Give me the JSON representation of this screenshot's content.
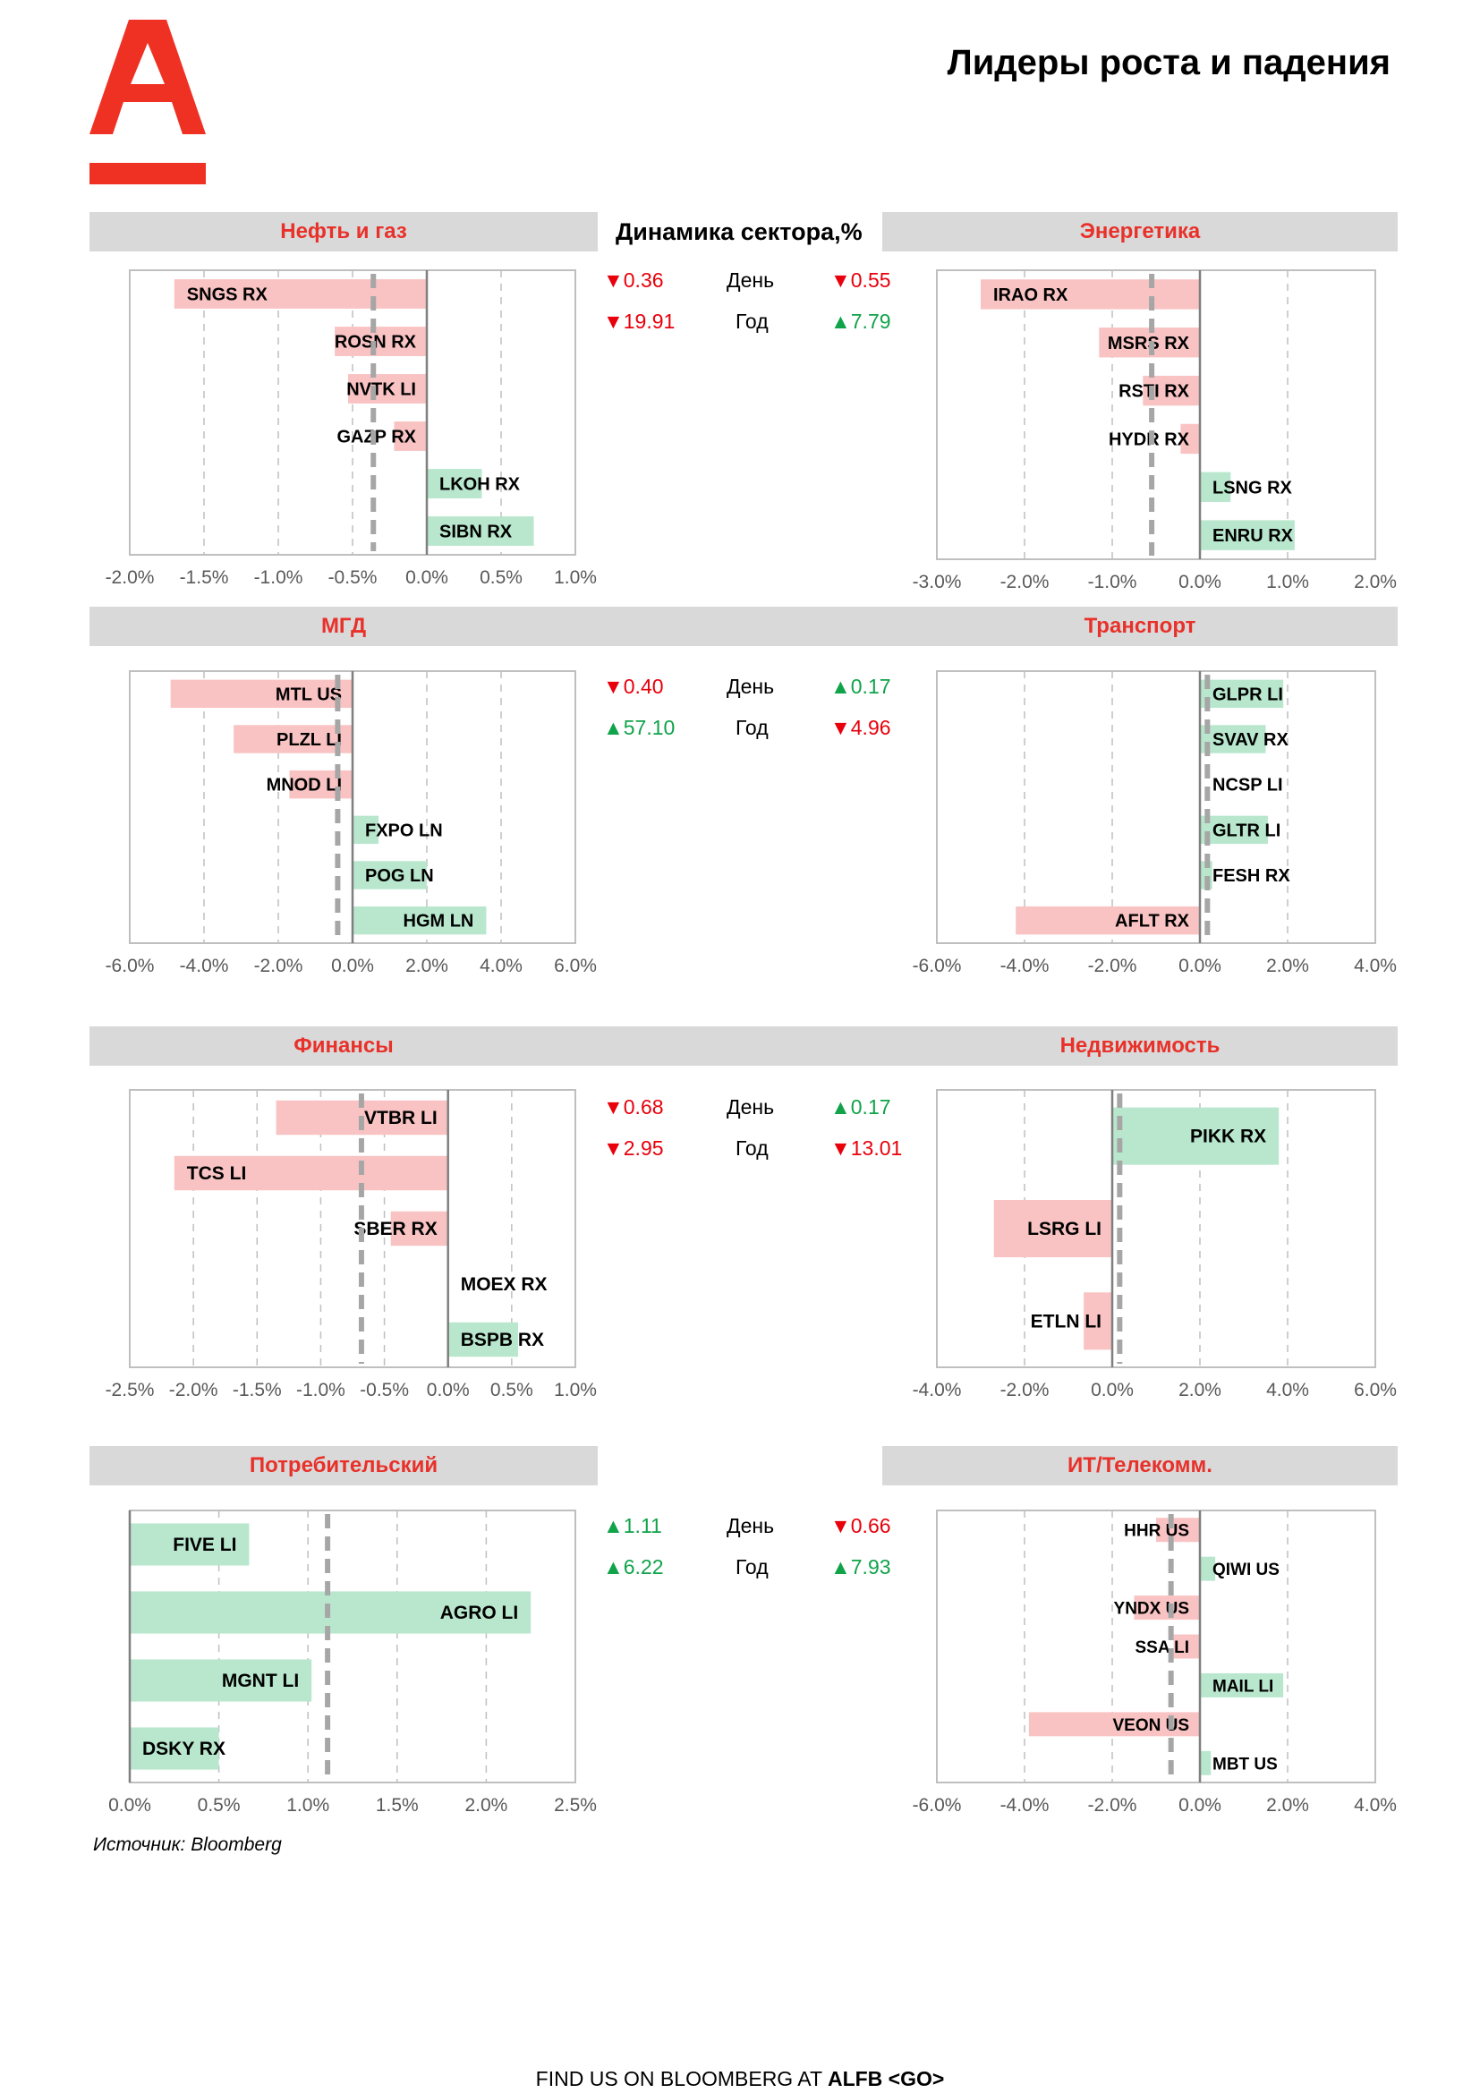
{
  "page": {
    "title": "Лидеры роста и падения",
    "dynamics_title": "Динамика сектора,%",
    "source": "Источник: Bloomberg",
    "footer_prefix": "FIND US ON BLOOMBERG AT ",
    "footer_code": "ALFB <GO>",
    "colors": {
      "brand": "#EF3124",
      "positive": "#B8E7CD",
      "negative": "#F9C3C3",
      "up_text": "#10A34A",
      "down_text": "#E8000B"
    }
  },
  "dynamics": [
    {
      "left": {
        "day": "▼0.36",
        "day_dir": "down",
        "year": "▼19.91",
        "year_dir": "down"
      },
      "right": {
        "day": "▼0.55",
        "day_dir": "down",
        "year": "▲7.79",
        "year_dir": "up"
      },
      "day_label": "День",
      "year_label": "Год"
    },
    {
      "left": {
        "day": "▼0.40",
        "day_dir": "down",
        "year": "▲57.10",
        "year_dir": "up"
      },
      "right": {
        "day": "▲0.17",
        "day_dir": "up",
        "year": "▼4.96",
        "year_dir": "down"
      },
      "day_label": "День",
      "year_label": "Год"
    },
    {
      "left": {
        "day": "▼0.68",
        "day_dir": "down",
        "year": "▼2.95",
        "year_dir": "down"
      },
      "right": {
        "day": "▲0.17",
        "day_dir": "up",
        "year": "▼13.01",
        "year_dir": "down"
      },
      "day_label": "День",
      "year_label": "Год"
    },
    {
      "left": {
        "day": "▲1.11",
        "day_dir": "up",
        "year": "▲6.22",
        "year_dir": "up"
      },
      "right": {
        "day": "▼0.66",
        "day_dir": "down",
        "year": "▲7.93",
        "year_dir": "up"
      },
      "day_label": "День",
      "year_label": "Год"
    }
  ],
  "chart_data": [
    {
      "type": "bar",
      "orientation": "horizontal",
      "title": "Нефть и газ",
      "categories": [
        "SNGS RX",
        "ROSN RX",
        "NVTK LI",
        "GAZP RX",
        "LKOH RX",
        "SIBN RX"
      ],
      "values": [
        -1.7,
        -0.62,
        -0.53,
        -0.22,
        0.37,
        0.72
      ],
      "sector_average": -0.36,
      "xlim": [
        -2.0,
        1.0
      ],
      "ticks": [
        -2.0,
        -1.5,
        -1.0,
        -0.5,
        0.0,
        0.5,
        1.0
      ],
      "tick_labels": [
        "-2.0%",
        "-1.5%",
        "-1.0%",
        "-0.5%",
        "0.0%",
        "0.5%",
        "1.0%"
      ],
      "grid": "vertical-dashed"
    },
    {
      "type": "bar",
      "orientation": "horizontal",
      "title": "Энергетика",
      "categories": [
        "IRAO RX",
        "MSRS RX",
        "RSTI RX",
        "HYDR RX",
        "LSNG RX",
        "ENRU RX"
      ],
      "values": [
        -2.5,
        -1.15,
        -0.65,
        -0.22,
        0.35,
        1.08
      ],
      "sector_average": -0.55,
      "xlim": [
        -3.0,
        2.0
      ],
      "ticks": [
        -3.0,
        -2.0,
        -1.0,
        0.0,
        1.0,
        2.0
      ],
      "tick_labels": [
        "-3.0%",
        "-2.0%",
        "-1.0%",
        "0.0%",
        "1.0%",
        "2.0%"
      ],
      "grid": "vertical-dashed"
    },
    {
      "type": "bar",
      "orientation": "horizontal",
      "title": "МГД",
      "categories": [
        "MTL US",
        "PLZL LI",
        "MNOD LI",
        "FXPO LN",
        "POG LN",
        "HGM LN"
      ],
      "values": [
        -4.9,
        -3.2,
        -1.7,
        0.7,
        2.0,
        3.6
      ],
      "sector_average": -0.4,
      "xlim": [
        -6.0,
        6.0
      ],
      "ticks": [
        -6.0,
        -4.0,
        -2.0,
        0.0,
        2.0,
        4.0,
        6.0
      ],
      "tick_labels": [
        "-6.0%",
        "-4.0%",
        "-2.0%",
        "0.0%",
        "2.0%",
        "4.0%",
        "6.0%"
      ],
      "grid": "vertical-dashed"
    },
    {
      "type": "bar",
      "orientation": "horizontal",
      "title": "Транспорт",
      "categories": [
        "GLPR LI",
        "SVAV RX",
        "NCSP LI",
        "GLTR LI",
        "FESH RX",
        "AFLT RX"
      ],
      "values": [
        1.9,
        1.5,
        0.0,
        1.55,
        0.28,
        -4.2
      ],
      "sector_average": 0.17,
      "xlim": [
        -6.0,
        4.0
      ],
      "ticks": [
        -6.0,
        -4.0,
        -2.0,
        0.0,
        2.0,
        4.0
      ],
      "tick_labels": [
        "-6.0%",
        "-4.0%",
        "-2.0%",
        "0.0%",
        "2.0%",
        "4.0%"
      ],
      "grid": "vertical-dashed"
    },
    {
      "type": "bar",
      "orientation": "horizontal",
      "title": "Финансы",
      "categories": [
        "VTBR LI",
        "TCS LI",
        "SBER RX",
        "MOEX RX",
        "BSPB RX"
      ],
      "values": [
        -1.35,
        -2.15,
        -0.45,
        0.0,
        0.55
      ],
      "sector_average": -0.68,
      "xlim": [
        -2.5,
        1.0
      ],
      "ticks": [
        -2.5,
        -2.0,
        -1.5,
        -1.0,
        -0.5,
        0.0,
        0.5,
        1.0
      ],
      "tick_labels": [
        "-2.5%",
        "-2.0%",
        "-1.5%",
        "-1.0%",
        "-0.5%",
        "0.0%",
        "0.5%",
        "1.0%"
      ],
      "grid": "vertical-dashed"
    },
    {
      "type": "bar",
      "orientation": "horizontal",
      "title": "Недвижимость",
      "categories": [
        "PIKK RX",
        "LSRG LI",
        "ETLN LI"
      ],
      "values": [
        3.8,
        -2.7,
        -0.65
      ],
      "sector_average": 0.17,
      "xlim": [
        -4.0,
        6.0
      ],
      "ticks": [
        -4.0,
        -2.0,
        0.0,
        2.0,
        4.0,
        6.0
      ],
      "tick_labels": [
        "-4.0%",
        "-2.0%",
        "0.0%",
        "2.0%",
        "4.0%",
        "6.0%"
      ],
      "grid": "vertical-dashed"
    },
    {
      "type": "bar",
      "orientation": "horizontal",
      "title": "Потребительский",
      "categories": [
        "FIVE LI",
        "AGRO LI",
        "MGNT LI",
        "DSKY RX"
      ],
      "values": [
        0.67,
        2.25,
        1.02,
        0.5
      ],
      "sector_average": 1.11,
      "xlim": [
        0.0,
        2.5
      ],
      "ticks": [
        0.0,
        0.5,
        1.0,
        1.5,
        2.0,
        2.5
      ],
      "tick_labels": [
        "0.0%",
        "0.5%",
        "1.0%",
        "1.5%",
        "2.0%",
        "2.5%"
      ],
      "grid": "vertical-dashed"
    },
    {
      "type": "bar",
      "orientation": "horizontal",
      "title": "ИТ/Телекомм.",
      "categories": [
        "HHR US",
        "QIWI US",
        "YNDX US",
        "SSA LI",
        "MAIL LI",
        "VEON US",
        "MBT US"
      ],
      "values": [
        -1.0,
        0.35,
        -1.5,
        -0.6,
        1.9,
        -3.9,
        0.25
      ],
      "sector_average": -0.66,
      "xlim": [
        -6.0,
        4.0
      ],
      "ticks": [
        -6.0,
        -4.0,
        -2.0,
        0.0,
        2.0,
        4.0
      ],
      "tick_labels": [
        "-6.0%",
        "-4.0%",
        "-2.0%",
        "0.0%",
        "2.0%",
        "4.0%"
      ],
      "grid": "vertical-dashed"
    }
  ]
}
